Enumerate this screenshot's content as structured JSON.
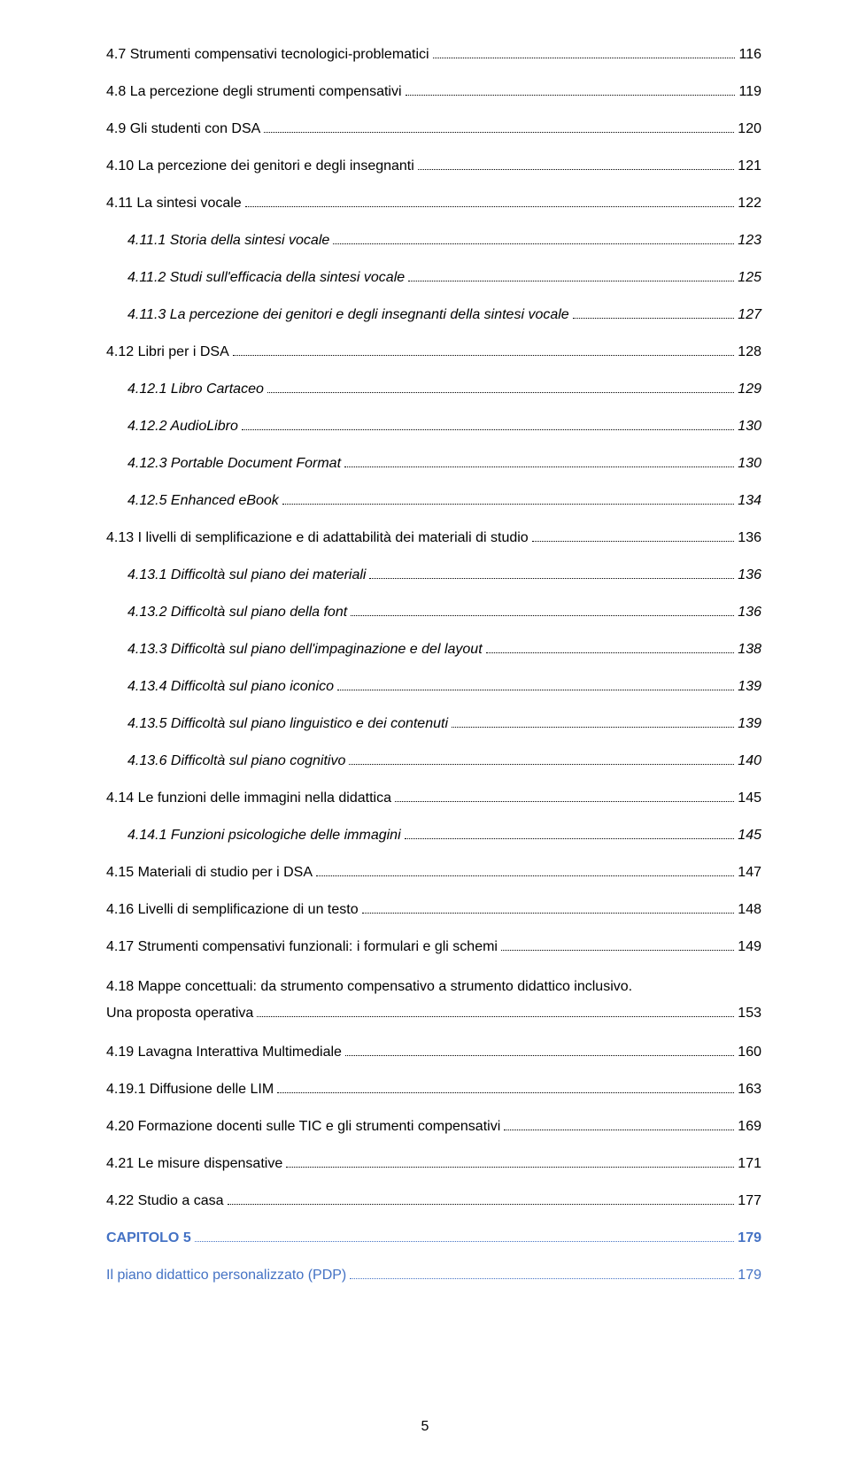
{
  "colors": {
    "text": "#000000",
    "chapter": "#4472c4",
    "background": "#ffffff"
  },
  "toc": {
    "e0": {
      "label": "4.7 Strumenti compensativi tecnologici-problematici",
      "page": "116"
    },
    "e1": {
      "label": "4.8 La percezione degli strumenti compensativi",
      "page": "119"
    },
    "e2": {
      "label": "4.9 Gli studenti con DSA",
      "page": "120"
    },
    "e3": {
      "label": "4.10 La percezione dei genitori e degli insegnanti",
      "page": "121"
    },
    "e4": {
      "label": "4.11 La sintesi vocale",
      "page": "122"
    },
    "e5": {
      "label": "4.11.1 Storia della sintesi vocale",
      "page": "123"
    },
    "e6": {
      "label": "4.11.2 Studi sull'efficacia della sintesi vocale",
      "page": "125"
    },
    "e7": {
      "label": "4.11.3 La percezione dei genitori e degli insegnanti della sintesi vocale",
      "page": "127"
    },
    "e8": {
      "label": "4.12 Libri per i DSA",
      "page": "128"
    },
    "e9": {
      "label": "4.12.1 Libro Cartaceo",
      "page": "129"
    },
    "e10": {
      "label": "4.12.2 AudioLibro",
      "page": "130"
    },
    "e11": {
      "label": "4.12.3 Portable Document Format",
      "page": "130"
    },
    "e12": {
      "label": "4.12.5 Enhanced eBook",
      "page": "134"
    },
    "e13": {
      "label": "4.13 I livelli di semplificazione e di adattabilità dei materiali di studio",
      "page": "136"
    },
    "e14": {
      "label": "4.13.1 Difficoltà sul piano dei materiali",
      "page": "136"
    },
    "e15": {
      "label": "4.13.2 Difficoltà sul piano della font",
      "page": "136"
    },
    "e16": {
      "label": "4.13.3 Difficoltà sul piano dell'impaginazione e del layout",
      "page": "138"
    },
    "e17": {
      "label": "4.13.4 Difficoltà sul piano iconico",
      "page": "139"
    },
    "e18": {
      "label": "4.13.5 Difficoltà sul piano linguistico e dei contenuti",
      "page": "139"
    },
    "e19": {
      "label": "4.13.6 Difficoltà sul piano cognitivo",
      "page": "140"
    },
    "e20": {
      "label": "4.14 Le funzioni delle immagini nella didattica",
      "page": "145"
    },
    "e21": {
      "label": "4.14.1 Funzioni psicologiche delle immagini",
      "page": "145"
    },
    "e22": {
      "label": "4.15 Materiali di studio per i DSA",
      "page": "147"
    },
    "e23": {
      "label": "4.16 Livelli di semplificazione di un testo",
      "page": "148"
    },
    "e24": {
      "label": "4.17 Strumenti compensativi funzionali: i formulari e gli schemi",
      "page": "149"
    },
    "e25": {
      "line1": "4.18 Mappe concettuali: da strumento compensativo a strumento didattico inclusivo.",
      "line2": "Una proposta operativa",
      "page": "153"
    },
    "e26": {
      "label": "4.19 Lavagna Interattiva Multimediale",
      "page": "160"
    },
    "e27": {
      "label": "4.19.1 Diffusione delle LIM",
      "page": "163"
    },
    "e28": {
      "label": "4.20 Formazione docenti sulle TIC e gli strumenti compensativi",
      "page": "169"
    },
    "e29": {
      "label": "4.21 Le misure dispensative",
      "page": "171"
    },
    "e30": {
      "label": "4.22 Studio a casa",
      "page": "177"
    },
    "ch": {
      "label": "CAPITOLO 5",
      "page": "179"
    },
    "chs": {
      "label": "Il piano didattico personalizzato (PDP)",
      "page": "179"
    }
  },
  "footer": {
    "page_number": "5"
  }
}
